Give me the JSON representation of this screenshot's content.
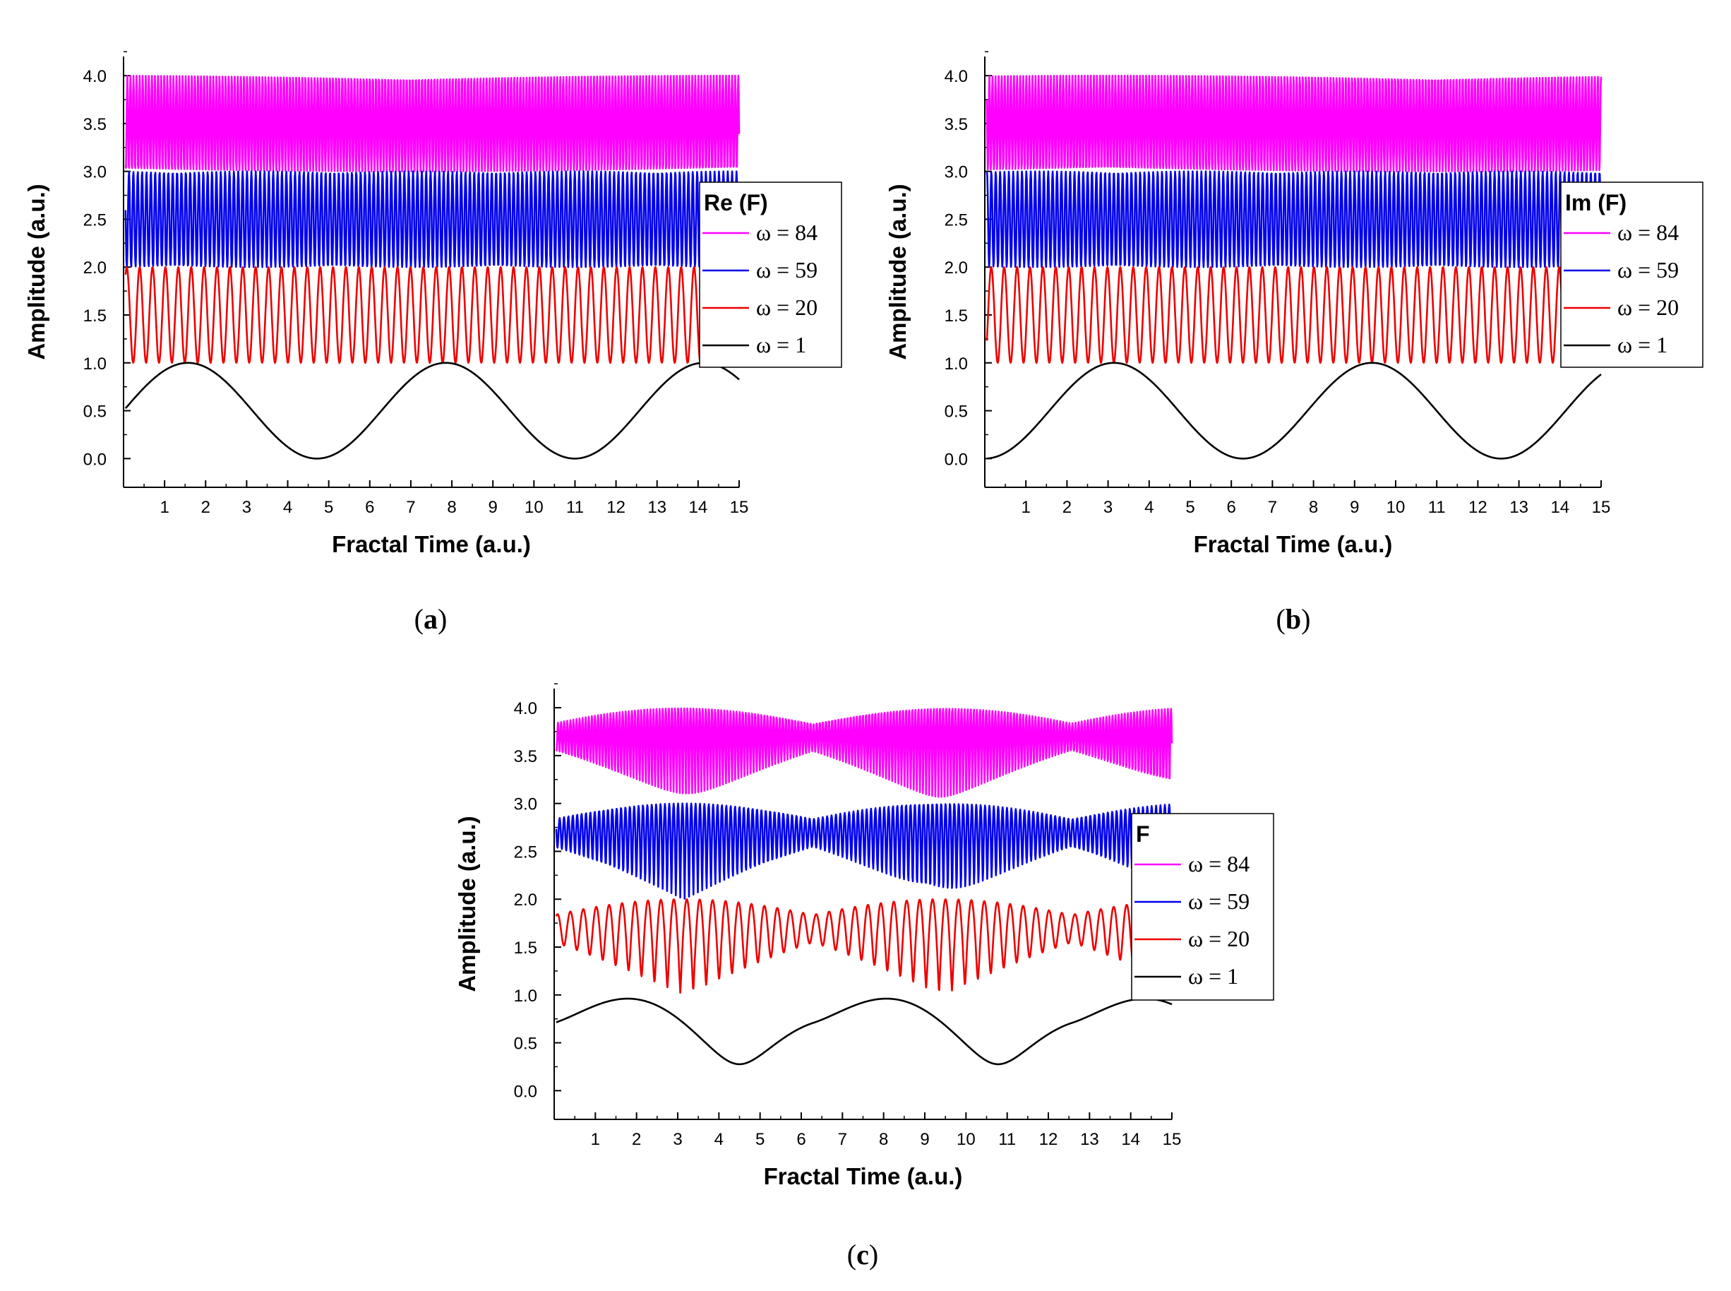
{
  "chart_data": [
    {
      "type": "line",
      "caption": "a",
      "title": "",
      "xlabel": "Fractal Time (a.u.)",
      "ylabel": "Amplitude (a.u.)",
      "xlim": [
        0,
        15
      ],
      "ylim": [
        -0.3,
        4.2
      ],
      "xticks": [
        "1",
        "2",
        "3",
        "4",
        "5",
        "6",
        "7",
        "8",
        "9",
        "10",
        "11",
        "12",
        "13",
        "14",
        "15"
      ],
      "yticks": [
        "0.0",
        "0.5",
        "1.0",
        "1.5",
        "2.0",
        "2.5",
        "3.0",
        "3.5",
        "4.0"
      ],
      "legend_title": "Re (F)",
      "series": [
        {
          "name": "ω = 84",
          "color": "#ff00ff",
          "fn": "re",
          "omega": 84,
          "offset": 3.0
        },
        {
          "name": "ω = 59",
          "color": "#0000ee",
          "fn": "re",
          "omega": 59,
          "offset": 2.0
        },
        {
          "name": "ω = 20",
          "color": "#ee0000",
          "fn": "re",
          "omega": 20,
          "offset": 1.0
        },
        {
          "name": "ω = 1",
          "color": "#000000",
          "fn": "re",
          "omega": 1,
          "offset": 0.0
        }
      ]
    },
    {
      "type": "line",
      "caption": "b",
      "title": "",
      "xlabel": "Fractal Time (a.u.)",
      "ylabel": "Amplitude (a.u.)",
      "xlim": [
        0,
        15
      ],
      "ylim": [
        -0.3,
        4.2
      ],
      "xticks": [
        "1",
        "2",
        "3",
        "4",
        "5",
        "6",
        "7",
        "8",
        "9",
        "10",
        "11",
        "12",
        "13",
        "14",
        "15"
      ],
      "yticks": [
        "0.0",
        "0.5",
        "1.0",
        "1.5",
        "2.0",
        "2.5",
        "3.0",
        "3.5",
        "4.0"
      ],
      "legend_title": "Im (F)",
      "series": [
        {
          "name": "ω = 84",
          "color": "#ff00ff",
          "fn": "im",
          "omega": 84,
          "offset": 3.0
        },
        {
          "name": "ω = 59",
          "color": "#0000ee",
          "fn": "im",
          "omega": 59,
          "offset": 2.0
        },
        {
          "name": "ω = 20",
          "color": "#ee0000",
          "fn": "im",
          "omega": 20,
          "offset": 1.0
        },
        {
          "name": "ω = 1",
          "color": "#000000",
          "fn": "im",
          "omega": 1,
          "offset": 0.0
        }
      ]
    },
    {
      "type": "line",
      "caption": "c",
      "title": "",
      "xlabel": "Fractal Time (a.u.)",
      "ylabel": "Amplitude (a.u.)",
      "xlim": [
        0,
        15
      ],
      "ylim": [
        -0.3,
        4.2
      ],
      "xticks": [
        "1",
        "2",
        "3",
        "4",
        "5",
        "6",
        "7",
        "8",
        "9",
        "10",
        "11",
        "12",
        "13",
        "14",
        "15"
      ],
      "yticks": [
        "0.0",
        "0.5",
        "1.0",
        "1.5",
        "2.0",
        "2.5",
        "3.0",
        "3.5",
        "4.0"
      ],
      "legend_title": "F",
      "series": [
        {
          "name": "ω = 84",
          "color": "#ff00ff",
          "fn": "mod",
          "omega": 84,
          "offset": 3.0
        },
        {
          "name": "ω = 59",
          "color": "#0000ee",
          "fn": "mod",
          "omega": 59,
          "offset": 2.0
        },
        {
          "name": "ω = 20",
          "color": "#ee0000",
          "fn": "mod",
          "omega": 20,
          "offset": 1.0
        },
        {
          "name": "ω = 1",
          "color": "#000000",
          "fn": "mod",
          "omega": 1,
          "offset": 0.0
        }
      ]
    }
  ]
}
